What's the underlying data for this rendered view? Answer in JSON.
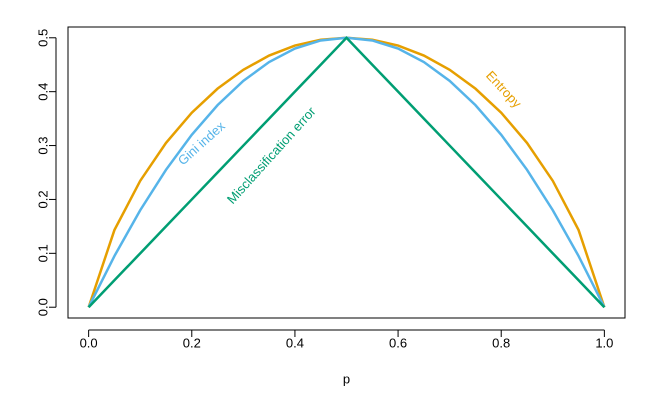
{
  "chart_data": {
    "type": "line",
    "x_label": "p",
    "x": [
      0,
      0.05,
      0.1,
      0.15,
      0.2,
      0.25,
      0.3,
      0.35,
      0.4,
      0.45,
      0.5,
      0.55,
      0.6,
      0.65,
      0.7,
      0.75,
      0.8,
      0.85,
      0.9,
      0.95,
      1
    ],
    "series": [
      {
        "name": "Entropy",
        "color": "#E69F00",
        "values": [
          0,
          0.1432,
          0.2345,
          0.3049,
          0.361,
          0.4056,
          0.4406,
          0.467,
          0.4855,
          0.4964,
          0.5,
          0.4964,
          0.4855,
          0.467,
          0.4406,
          0.4056,
          0.361,
          0.3049,
          0.2345,
          0.1432,
          0
        ]
      },
      {
        "name": "Gini index",
        "color": "#56B4E9",
        "values": [
          0,
          0.095,
          0.18,
          0.255,
          0.32,
          0.375,
          0.42,
          0.455,
          0.48,
          0.495,
          0.5,
          0.495,
          0.48,
          0.455,
          0.42,
          0.375,
          0.32,
          0.255,
          0.18,
          0.095,
          0
        ]
      },
      {
        "name": "Misclassification error",
        "color": "#009E73",
        "values": [
          0,
          0.05,
          0.1,
          0.15,
          0.2,
          0.25,
          0.3,
          0.35,
          0.4,
          0.45,
          0.5,
          0.45,
          0.4,
          0.35,
          0.3,
          0.25,
          0.2,
          0.15,
          0.1,
          0.05,
          0
        ]
      }
    ],
    "xlim": [
      -0.04,
      1.04
    ],
    "ylim": [
      -0.02,
      0.52
    ],
    "xticks": [
      {
        "value": 0,
        "label": "0.0"
      },
      0.2,
      0.4,
      0.6,
      0.8,
      {
        "value": 1,
        "label": "1.0"
      }
    ],
    "yticks": [
      {
        "value": 0,
        "label": "0.0"
      },
      0.1,
      0.2,
      0.3,
      0.4,
      0.5
    ]
  }
}
